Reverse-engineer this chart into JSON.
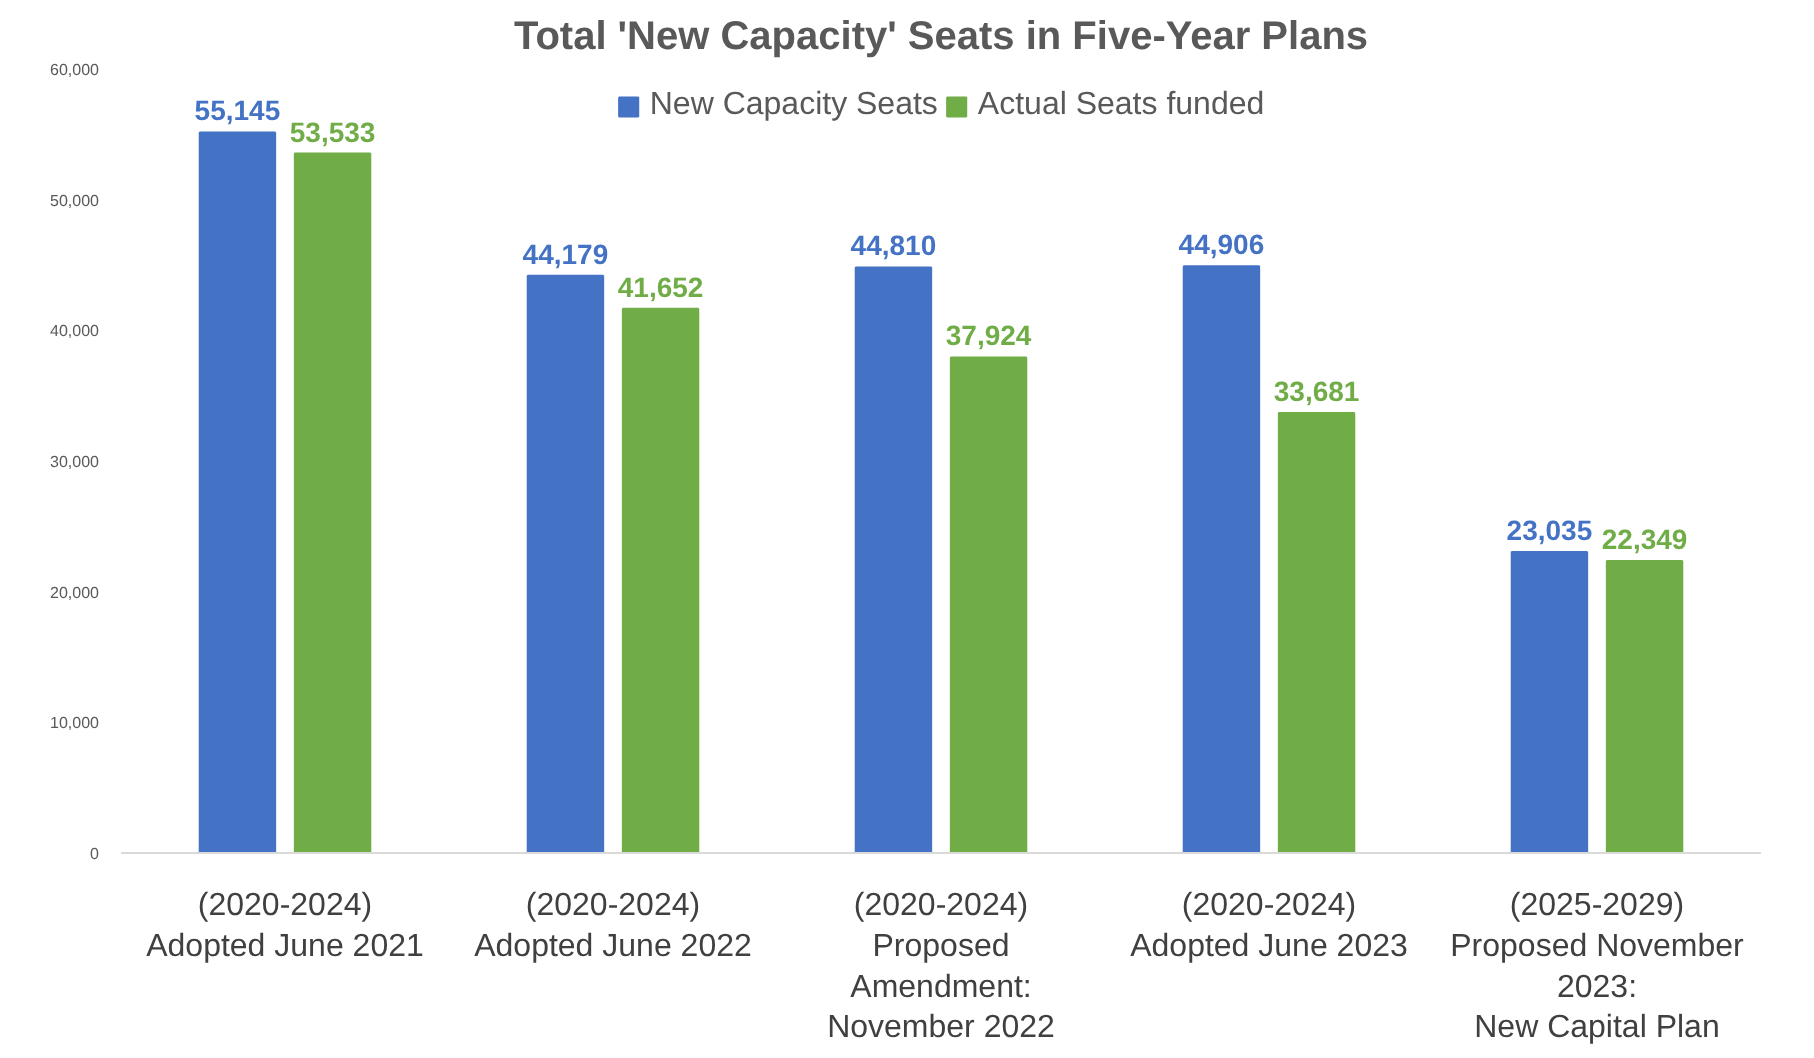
{
  "chart_data": {
    "type": "bar",
    "title": "Total 'New Capacity' Seats in Five-Year Plans",
    "categories": [
      "(2020-2024)\nAdopted June 2021",
      "(2020-2024)\nAdopted June 2022",
      "(2020-2024)\nProposed\nAmendment:\nNovember 2022",
      "(2020-2024)\nAdopted June 2023",
      "(2025-2029)\nProposed November\n2023:\nNew Capital Plan"
    ],
    "series": [
      {
        "name": "New Capacity Seats",
        "color": "#4472c4",
        "values": [
          55145,
          44179,
          44810,
          44906,
          23035
        ],
        "value_labels": [
          "55,145",
          "44,179",
          "44,810",
          "44,906",
          "23,035"
        ]
      },
      {
        "name": "Actual Seats funded",
        "color": "#70ad47",
        "values": [
          53533,
          41652,
          37924,
          33681,
          22349
        ],
        "value_labels": [
          "53,533",
          "41,652",
          "37,924",
          "33,681",
          "22,349"
        ]
      }
    ],
    "ylim": [
      0,
      60000
    ],
    "yticks": [
      {
        "value": 0,
        "label": "0"
      },
      {
        "value": 10000,
        "label": "10,000"
      },
      {
        "value": 20000,
        "label": "20,000"
      },
      {
        "value": 30000,
        "label": "30,000"
      },
      {
        "value": 40000,
        "label": "40,000"
      },
      {
        "value": 50000,
        "label": "50,000"
      },
      {
        "value": 60000,
        "label": "60,000"
      }
    ],
    "grid": false,
    "legend": "top"
  }
}
